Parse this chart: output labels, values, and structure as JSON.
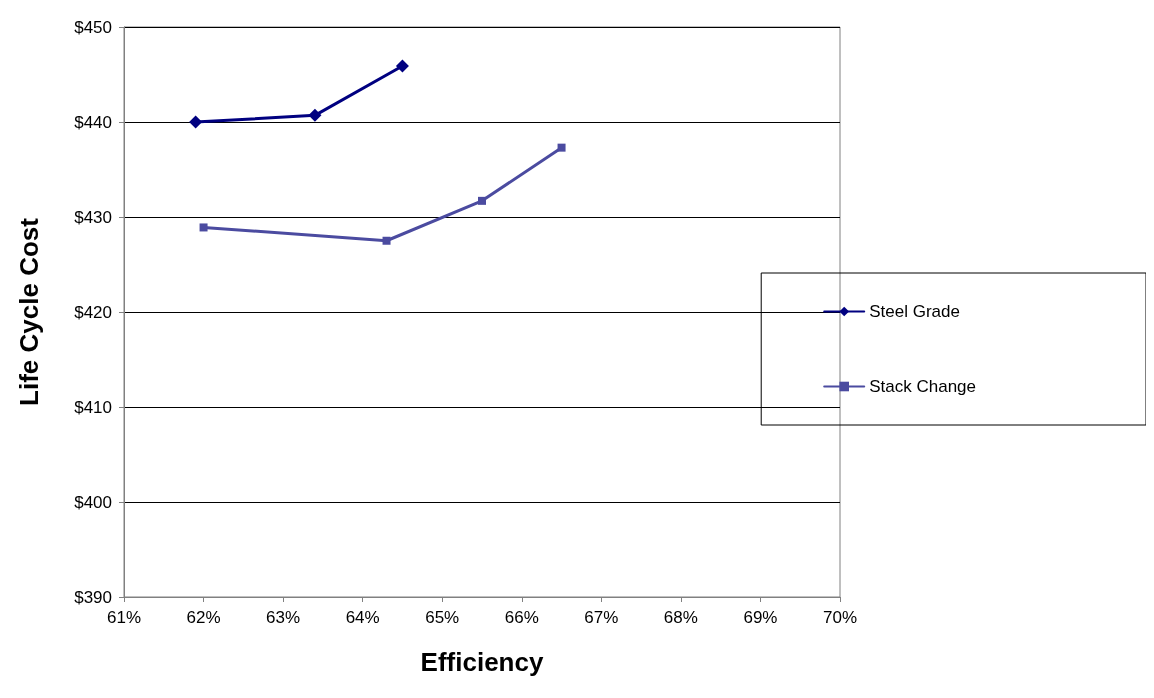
{
  "chart_data": {
    "type": "line",
    "xlabel": "Efficiency",
    "ylabel": "Life Cycle Cost",
    "series": [
      {
        "name": "Steel Grade",
        "color": "#000080",
        "marker": "diamond",
        "x": [
          61.9,
          63.4,
          64.5
        ],
        "values": [
          440.0,
          440.7,
          445.9
        ]
      },
      {
        "name": "Stack Change",
        "color": "#4b4ba0",
        "marker": "square",
        "x": [
          62.0,
          64.3,
          65.5,
          66.5
        ],
        "values": [
          428.9,
          427.5,
          431.7,
          437.3
        ]
      }
    ],
    "xlim": [
      61,
      70
    ],
    "xticks": [
      {
        "value": 61,
        "label": "61%"
      },
      {
        "value": 62,
        "label": "62%"
      },
      {
        "value": 63,
        "label": "63%"
      },
      {
        "value": 64,
        "label": "64%"
      },
      {
        "value": 65,
        "label": "65%"
      },
      {
        "value": 66,
        "label": "66%"
      },
      {
        "value": 67,
        "label": "67%"
      },
      {
        "value": 68,
        "label": "68%"
      },
      {
        "value": 69,
        "label": "69%"
      },
      {
        "value": 70,
        "label": "70%"
      }
    ],
    "ylim": [
      390,
      450
    ],
    "yticks": [
      {
        "value": 390,
        "label": "$390"
      },
      {
        "value": 400,
        "label": "$400"
      },
      {
        "value": 410,
        "label": "$410"
      },
      {
        "value": 420,
        "label": "$420"
      },
      {
        "value": 430,
        "label": "$430"
      },
      {
        "value": 440,
        "label": "$440"
      },
      {
        "value": 450,
        "label": "$450"
      }
    ],
    "grid": "y",
    "legend": "right",
    "line_style": "solid"
  }
}
